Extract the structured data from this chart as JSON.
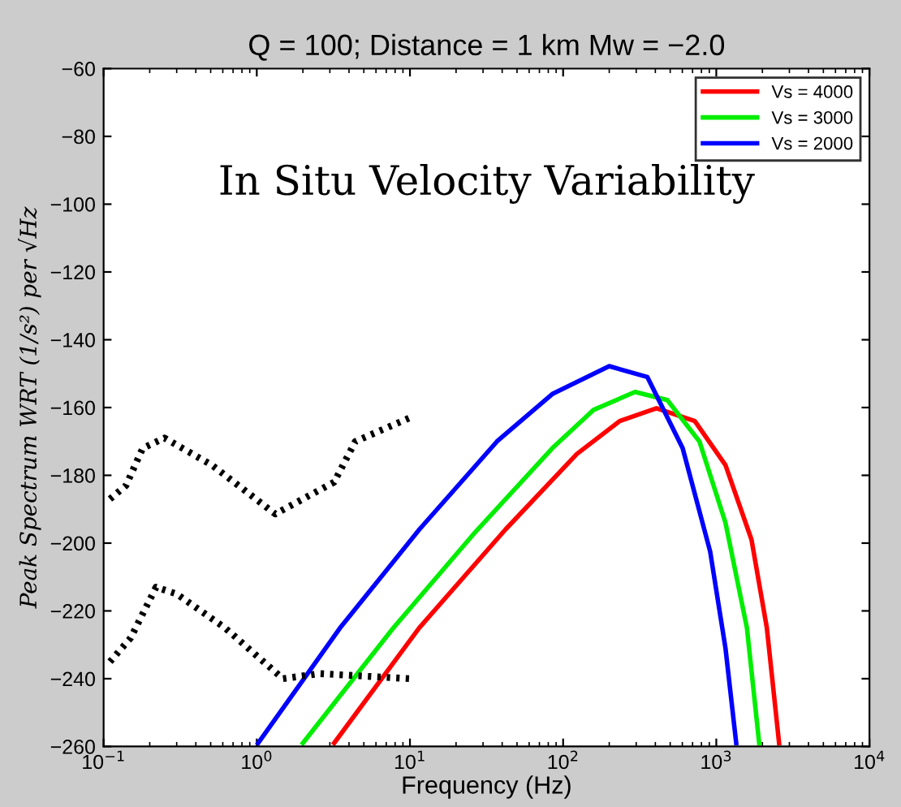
{
  "chart_data": {
    "type": "line",
    "title": "Q = 100; Distance = 1 km Mw = −2.0",
    "xlabel": "Frequency (Hz)",
    "ylabel": "Peak Spectrum WRT (1/s²) per √Hz",
    "annotations": [
      "In Situ Velocity Variability"
    ],
    "log": "x",
    "xlim": [
      0.1,
      10000
    ],
    "ylim": [
      -260,
      -60
    ],
    "xticks": [
      {
        "value": 0.1,
        "label": "10$^{−1}$"
      },
      {
        "value": 1,
        "label": "10$^{0}$"
      },
      {
        "value": 10,
        "label": "10$^{1}$"
      },
      {
        "value": 100,
        "label": "10$^{2}$"
      },
      {
        "value": 1000,
        "label": "10$^{3}$"
      },
      {
        "value": 10000,
        "label": "10$^{4}$"
      }
    ],
    "yticks": [
      -260,
      -240,
      -220,
      -200,
      -180,
      -160,
      -140,
      -120,
      -100,
      -80,
      -60
    ],
    "grid": false,
    "legend": "top right",
    "line_style": "solid",
    "marker": "none",
    "series": [
      {
        "name": "Vs = 4000",
        "color": "#ff0000",
        "x": [
          3.2,
          11.5,
          42,
          123,
          234,
          407,
          724,
          1148,
          1698,
          2138,
          2570
        ],
        "values": [
          -259,
          -225,
          -196,
          -173.7,
          -164,
          -160.2,
          -164,
          -177,
          -199,
          -225,
          -259
        ]
      },
      {
        "name": "Vs = 3000",
        "color": "#00ee00",
        "x": [
          2.0,
          7.8,
          25.7,
          85,
          158,
          295,
          479,
          776,
          1148,
          1585,
          1905
        ],
        "values": [
          -259,
          -225,
          -197.6,
          -172,
          -160.7,
          -155.4,
          -157.8,
          -170,
          -194,
          -225,
          -259
        ]
      },
      {
        "name": "Vs = 2000",
        "color": "#0000ff",
        "x": [
          1.02,
          3.5,
          11.5,
          37,
          85,
          200,
          355,
          603,
          912,
          1148,
          1349
        ],
        "values": [
          -259,
          -225,
          -196,
          -170,
          -156,
          -147.8,
          -151,
          -172,
          -202.5,
          -231,
          -259
        ]
      },
      {
        "color": "#000000",
        "line_style": "dotted",
        "x": [
          0.11,
          0.14,
          0.18,
          0.25,
          0.51,
          1.32,
          3.2,
          4.4,
          10
        ],
        "values": [
          -187,
          -183,
          -172,
          -169,
          -177,
          -191.4,
          -182,
          -170,
          -163
        ]
      },
      {
        "color": "#000000",
        "line_style": "dotted",
        "x": [
          0.11,
          0.15,
          0.22,
          0.3,
          0.62,
          1.48,
          2.57,
          10
        ],
        "values": [
          -235,
          -228,
          -213,
          -215,
          -225,
          -240,
          -238.5,
          -240
        ]
      }
    ]
  }
}
